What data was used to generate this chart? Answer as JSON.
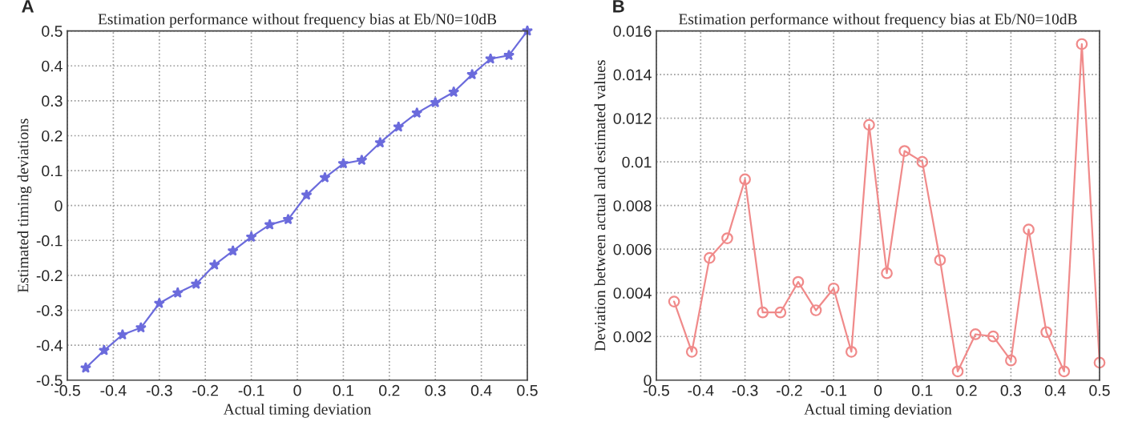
{
  "chart_data": [
    {
      "type": "line",
      "title": "Estimation performance without frequency bias at Eb/N0=10dB",
      "xlabel": "Actual timing deviation",
      "ylabel": "Estimated timing deviations",
      "annotations": [
        "A"
      ],
      "x": [
        -0.46,
        -0.42,
        -0.38,
        -0.34,
        -0.3,
        -0.26,
        -0.22,
        -0.18,
        -0.14,
        -0.1,
        -0.06,
        -0.02,
        0.02,
        0.06,
        0.1,
        0.14,
        0.18,
        0.22,
        0.26,
        0.3,
        0.34,
        0.38,
        0.42,
        0.46,
        0.5
      ],
      "series": [
        {
          "color": "#6b6bdc",
          "values": [
            -0.465,
            -0.415,
            -0.37,
            -0.35,
            -0.28,
            -0.25,
            -0.225,
            -0.17,
            -0.13,
            -0.09,
            -0.055,
            -0.04,
            0.03,
            0.08,
            0.12,
            0.13,
            0.18,
            0.225,
            0.265,
            0.295,
            0.325,
            0.375,
            0.42,
            0.43,
            0.5
          ]
        }
      ],
      "xlim": [
        -0.5,
        0.5
      ],
      "xticks": [
        -0.5,
        -0.4,
        -0.3,
        -0.2,
        -0.1,
        0,
        0.1,
        0.2,
        0.3,
        0.4,
        0.5
      ],
      "ylim": [
        -0.5,
        0.5
      ],
      "yticks": [
        -0.5,
        -0.4,
        -0.3,
        -0.2,
        -0.1,
        0,
        0.1,
        0.2,
        0.3,
        0.4,
        0.5
      ],
      "grid": true,
      "marker": "star",
      "line_style": "solid"
    },
    {
      "type": "line",
      "title": "Estimation performance without frequency bias at Eb/N0=10dB",
      "xlabel": "Actual timing deviation",
      "ylabel": "Deviation between actual and estimated values",
      "annotations": [
        "B"
      ],
      "x": [
        -0.46,
        -0.42,
        -0.38,
        -0.34,
        -0.3,
        -0.26,
        -0.22,
        -0.18,
        -0.14,
        -0.1,
        -0.06,
        -0.02,
        0.02,
        0.06,
        0.1,
        0.14,
        0.18,
        0.22,
        0.26,
        0.3,
        0.34,
        0.38,
        0.42,
        0.46,
        0.5
      ],
      "series": [
        {
          "color": "#f08a8a",
          "values": [
            0.0036,
            0.0013,
            0.0056,
            0.0065,
            0.0092,
            0.0031,
            0.0031,
            0.0045,
            0.0032,
            0.0042,
            0.0013,
            0.0117,
            0.0049,
            0.0105,
            0.01,
            0.0055,
            0.0004,
            0.0021,
            0.002,
            0.0009,
            0.0069,
            0.0022,
            0.0004,
            0.0154,
            0.0008
          ]
        }
      ],
      "xlim": [
        -0.5,
        0.5
      ],
      "xticks": [
        -0.5,
        -0.4,
        -0.3,
        -0.2,
        -0.1,
        0,
        0.1,
        0.2,
        0.3,
        0.4,
        0.5
      ],
      "ylim": [
        0,
        0.016
      ],
      "yticks": [
        0,
        0.002,
        0.004,
        0.006,
        0.008,
        0.01,
        0.012,
        0.014,
        0.016
      ],
      "grid": true,
      "marker": "circle",
      "line_style": "solid"
    }
  ]
}
